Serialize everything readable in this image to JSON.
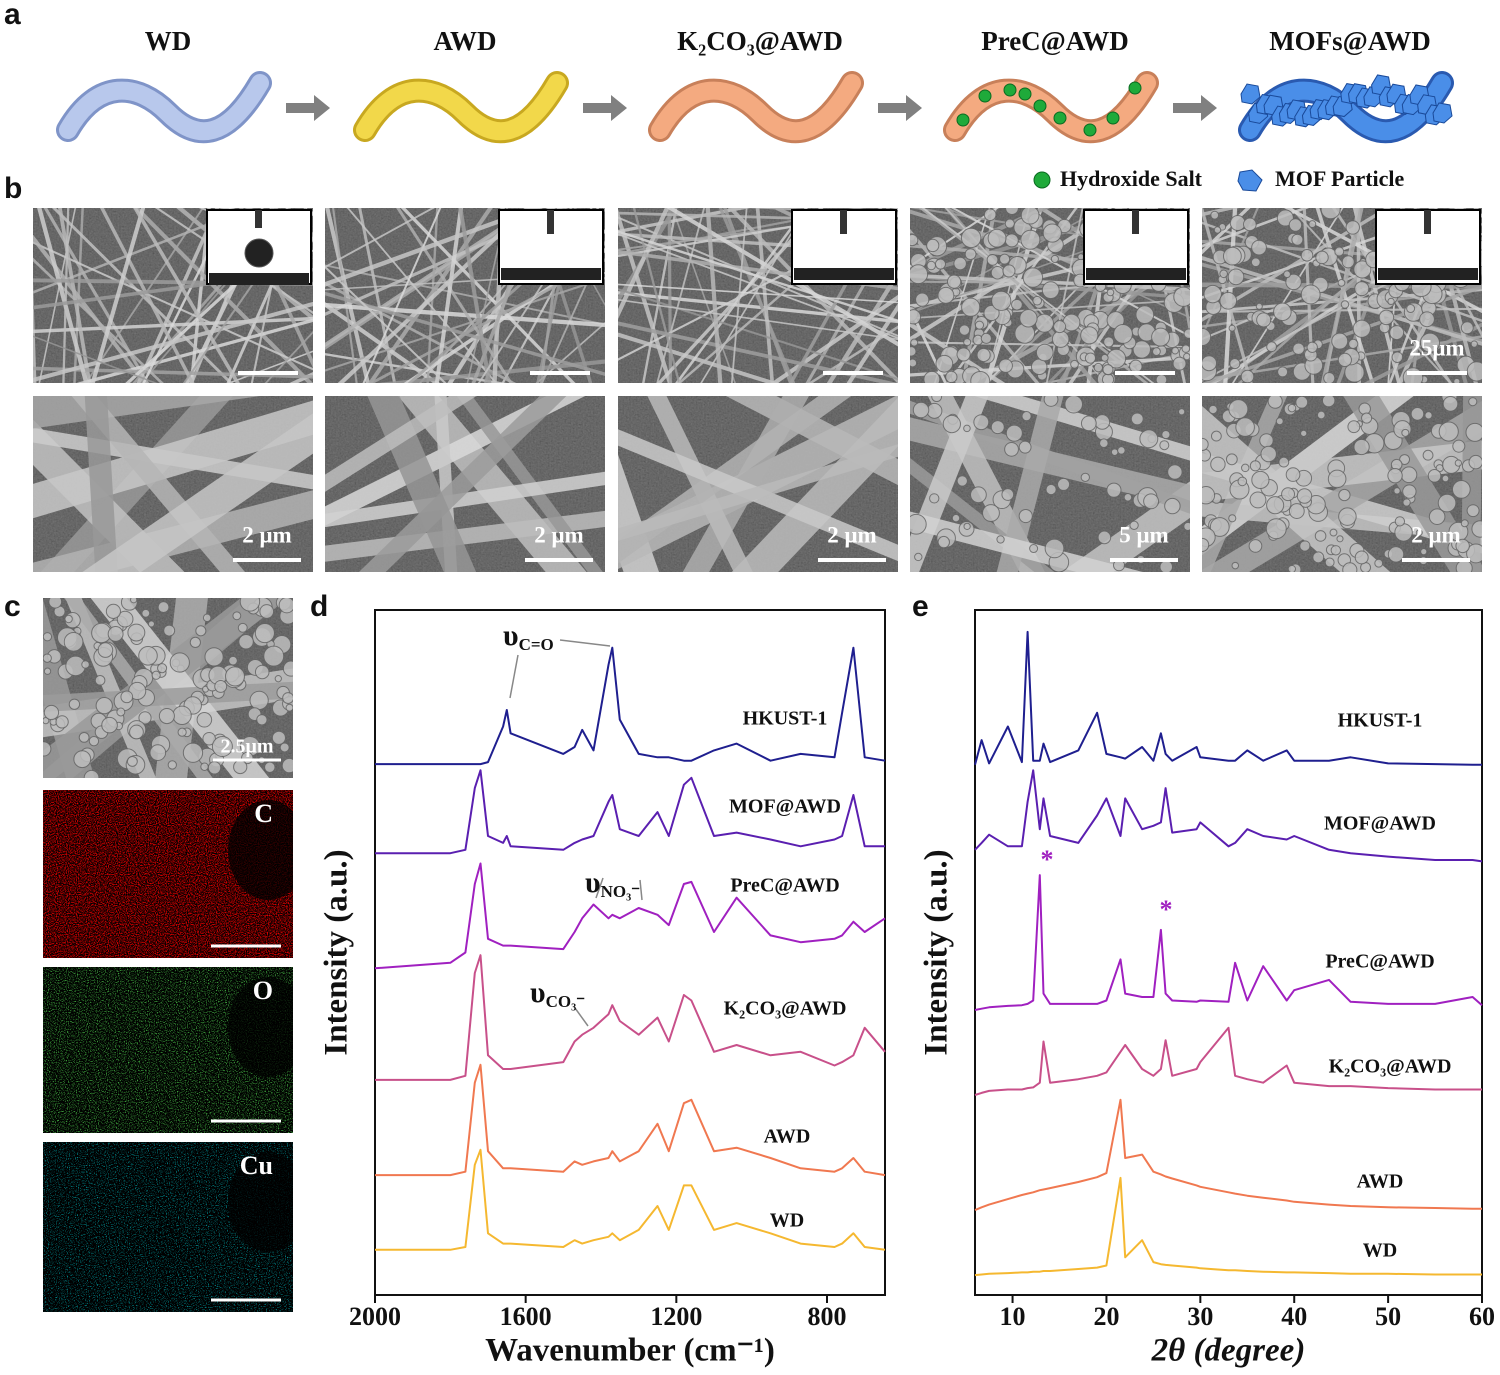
{
  "panel_labels": [
    "a",
    "b",
    "c",
    "d",
    "e"
  ],
  "panel_a": {
    "steps": [
      "WD",
      "AWD",
      "K₂CO₃@AWD",
      "PreC@AWD",
      "MOFs@AWD"
    ]
  },
  "panel_b": {
    "legend": [
      "Hydroxide Salt",
      "MOF Particle"
    ],
    "top_scale_label": "25μm",
    "bottom_scale_labels": [
      "2 μm",
      "2 μm",
      "2 μm",
      "5 μm",
      "2 μm"
    ]
  },
  "panel_c": {
    "scale_label": "2.5μm",
    "maps": [
      "C",
      "O",
      "Cu"
    ]
  },
  "chart_data": [
    {
      "type": "line",
      "xlabel": "Wavenumber (cm⁻¹)",
      "ylabel": "Intensity (a.u.)",
      "xlim": [
        2000,
        646
      ],
      "xticks": [
        2000,
        1600,
        1200,
        800
      ],
      "ylim": [
        0,
        100
      ],
      "annotations": [
        {
          "symbol": "υ",
          "subscript": "C=O"
        },
        {
          "symbol": "υ",
          "subscript": "NO₃⁻"
        },
        {
          "symbol": "υ",
          "subscript": "CO₃⁻"
        }
      ],
      "x": [
        2000,
        1800,
        1760,
        1735,
        1720,
        1700,
        1660,
        1650,
        1640,
        1500,
        1470,
        1450,
        1420,
        1380,
        1370,
        1350,
        1300,
        1250,
        1220,
        1180,
        1160,
        1100,
        1040,
        950,
        870,
        780,
        760,
        730,
        700,
        646
      ],
      "series": [
        {
          "name": "HKUST-1",
          "color": "#1f1f8f",
          "values": [
            77.5,
            77.5,
            77.5,
            77.5,
            77.5,
            77.8,
            83,
            85.4,
            82,
            79,
            80,
            82.5,
            79.5,
            92,
            94.5,
            84,
            79,
            78.5,
            78.5,
            78,
            78,
            79.5,
            80.5,
            78,
            79,
            78.5,
            85,
            94.5,
            78.5,
            78
          ]
        },
        {
          "name": "MOF@AWD",
          "color": "#5a1fb0",
          "values": [
            64.5,
            64.5,
            65,
            74,
            76.6,
            67,
            66,
            67,
            65.5,
            65,
            66,
            66.5,
            67,
            72,
            73,
            68,
            67,
            70.5,
            67,
            74.5,
            75.5,
            67,
            67.5,
            66.5,
            65.5,
            66.5,
            67,
            73,
            65.5,
            65.5
          ]
        },
        {
          "name": "PreC@AWD",
          "color": "#a020c0",
          "values": [
            47.7,
            48.5,
            50,
            60,
            63,
            52,
            51,
            51,
            51,
            50.5,
            53,
            55,
            57,
            55,
            55.5,
            55,
            56.5,
            55.5,
            54,
            60,
            60.3,
            53,
            58,
            52.5,
            51.5,
            52,
            52.5,
            54.5,
            53,
            55
          ]
        },
        {
          "name": "K₂CO₃@AWD",
          "color": "#c8508a",
          "values": [
            31.4,
            31.4,
            32,
            47,
            49.6,
            35,
            33,
            33,
            33,
            34,
            37,
            38,
            39,
            41,
            42.3,
            40,
            38,
            40.5,
            37,
            43.8,
            43,
            35.5,
            36.5,
            35,
            35.5,
            33.5,
            34,
            35,
            39,
            35.5
          ]
        },
        {
          "name": "AWD",
          "color": "#f07850",
          "values": [
            17.5,
            17.5,
            18,
            31,
            33.6,
            21,
            18.5,
            18.5,
            18.5,
            18,
            19.5,
            19,
            19.5,
            20,
            21,
            19.5,
            21,
            25,
            21,
            28,
            28.5,
            21,
            21.5,
            20,
            18.5,
            18,
            18.5,
            20,
            18,
            17.5
          ]
        },
        {
          "name": "WD",
          "color": "#f5b830",
          "values": [
            6.6,
            6.6,
            7,
            19,
            21.2,
            9,
            7.5,
            7.5,
            7.5,
            7,
            8,
            7.5,
            8,
            8.5,
            9,
            8,
            9.5,
            13,
            9.5,
            16,
            16,
            9.5,
            10.5,
            9,
            7.5,
            7,
            7.5,
            9,
            7,
            6.6
          ]
        }
      ]
    },
    {
      "type": "line",
      "xlabel": "2θ (degree)",
      "ylabel": "Intensity (a.u.)",
      "xlim": [
        6,
        60
      ],
      "xticks": [
        10,
        20,
        30,
        40,
        50,
        60
      ],
      "ylim": [
        0,
        100
      ],
      "annotations": [
        "*",
        "*"
      ],
      "x": [
        6,
        6.7,
        7.5,
        9.5,
        11,
        11.6,
        12.2,
        12.9,
        13.3,
        14,
        17,
        19,
        20,
        21.5,
        22,
        23.8,
        25,
        25.8,
        26.3,
        27,
        29.6,
        30,
        33,
        33.7,
        35,
        36.7,
        39.2,
        40,
        43.7,
        46,
        50,
        55,
        59,
        60
      ],
      "series": [
        {
          "name": "HKUST-1",
          "color": "#1f1f8f",
          "values": [
            77.4,
            81,
            77.6,
            83,
            77.8,
            96.8,
            78,
            78,
            80.5,
            77.8,
            79.5,
            85,
            79,
            78.5,
            78.3,
            80,
            78,
            82,
            79,
            78,
            80,
            78.5,
            78,
            78,
            79.5,
            78,
            79.5,
            78,
            78,
            78.5,
            77.6,
            77.5,
            77.4,
            77.4
          ]
        },
        {
          "name": "MOF@AWD",
          "color": "#5a1fb0",
          "values": [
            65,
            66,
            67.2,
            65.5,
            65.5,
            72,
            76.6,
            68,
            72.5,
            67,
            66,
            70,
            72.5,
            67,
            72.5,
            68,
            68.5,
            69,
            74,
            67.5,
            68,
            69,
            65.5,
            66,
            68,
            67,
            66.5,
            67,
            65,
            64.5,
            64,
            63.5,
            63.5,
            63.3
          ]
        },
        {
          "name": "PreC@AWD",
          "color": "#a020c0",
          "values": [
            41.6,
            41.8,
            42,
            42.2,
            42.3,
            42.5,
            43,
            61.3,
            44,
            42.5,
            42.5,
            42.5,
            43,
            49,
            44,
            43.5,
            43.5,
            53.3,
            44,
            43,
            42.8,
            43,
            42.8,
            48.5,
            43,
            48,
            43,
            44.5,
            46,
            42.8,
            42.5,
            42.5,
            43.5,
            42.3
          ]
        },
        {
          "name": "K₂CO₃@AWD",
          "color": "#c8508a",
          "values": [
            29.2,
            29.5,
            29.8,
            30,
            30,
            30.2,
            30.3,
            31,
            37,
            31,
            31.5,
            32,
            32.5,
            35.5,
            36.5,
            33,
            32,
            33,
            37.2,
            32,
            33,
            34,
            39,
            32,
            31.5,
            31,
            33.5,
            31,
            30.5,
            30.5,
            30.2,
            30,
            30,
            30
          ]
        },
        {
          "name": "AWD",
          "color": "#f07850",
          "values": [
            12.4,
            12.8,
            13.2,
            14,
            14.6,
            14.8,
            15,
            15.3,
            15.4,
            15.6,
            16.5,
            17.2,
            17.8,
            28.5,
            20,
            20.5,
            18,
            17.6,
            17.3,
            17,
            16,
            15.8,
            15,
            14.8,
            14.5,
            14.2,
            13.8,
            13.6,
            13.2,
            13,
            12.8,
            12.7,
            12.6,
            12.6
          ]
        },
        {
          "name": "WD",
          "color": "#f5b830",
          "values": [
            2.9,
            3,
            3.1,
            3.2,
            3.3,
            3.3,
            3.4,
            3.4,
            3.5,
            3.5,
            3.8,
            4,
            4.3,
            17.1,
            5.5,
            8,
            4.8,
            4.5,
            4.4,
            4.3,
            4,
            3.9,
            3.6,
            3.6,
            3.5,
            3.4,
            3.3,
            3.3,
            3.2,
            3.1,
            3.1,
            3,
            3,
            3
          ]
        }
      ]
    }
  ]
}
